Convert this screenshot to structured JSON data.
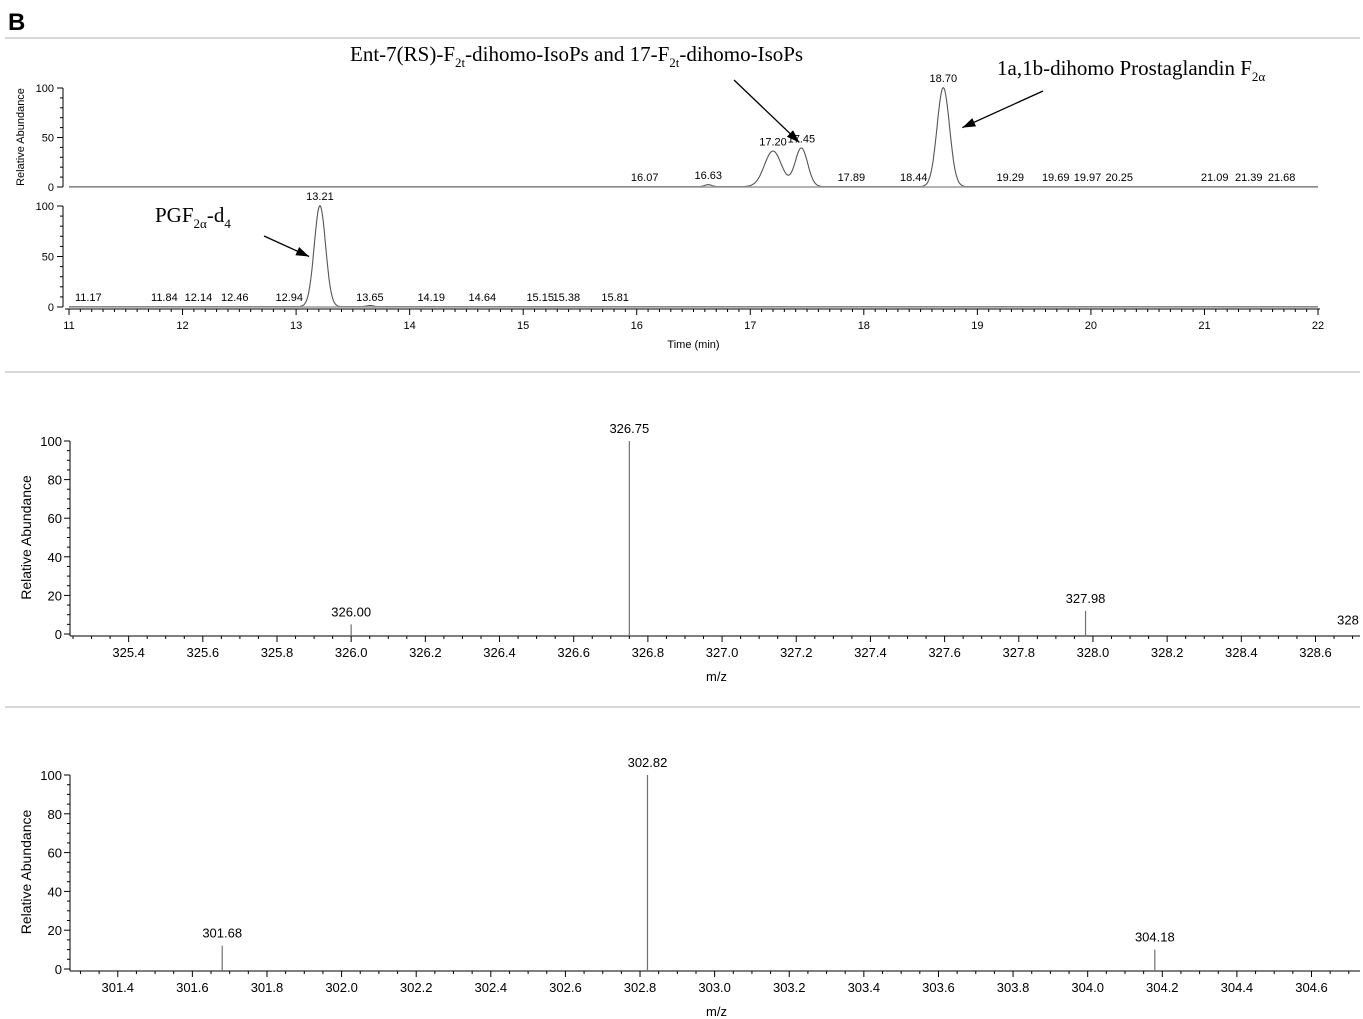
{
  "panel_letter": "B",
  "colors": {
    "axis": "#000000",
    "trace": "#555555",
    "separator": "#b0b0b0"
  },
  "chart_data": [
    {
      "id": "chromatogram",
      "type": "line",
      "xlabel": "Time (min)",
      "ylabel": "Relative Abundance",
      "xlim": [
        11,
        22
      ],
      "ylim": [
        0,
        100
      ],
      "xticks": [
        11,
        12,
        13,
        14,
        15,
        16,
        17,
        18,
        19,
        20,
        21,
        22
      ],
      "yticks": [
        0,
        50,
        100
      ],
      "series": [
        {
          "peaks": [
            {
              "rt": 16.63,
              "height": 2,
              "width": 0.03
            },
            {
              "rt": 17.2,
              "height": 36,
              "width": 0.075
            },
            {
              "rt": 17.45,
              "height": 39,
              "width": 0.055
            },
            {
              "rt": 18.7,
              "height": 100,
              "width": 0.055
            }
          ],
          "peak_labels": [
            {
              "text": "16.07",
              "x": 16.07,
              "y": 2
            },
            {
              "text": "16.63",
              "x": 16.63,
              "y": 4
            },
            {
              "text": "17.20",
              "x": 17.2,
              "y": 38
            },
            {
              "text": "17.45",
              "x": 17.45,
              "y": 41
            },
            {
              "text": "17.89",
              "x": 17.89,
              "y": 2
            },
            {
              "text": "18.44",
              "x": 18.44,
              "y": 2
            },
            {
              "text": "18.70",
              "x": 18.7,
              "y": 102
            },
            {
              "text": "19.29",
              "x": 19.29,
              "y": 2
            },
            {
              "text": "19.69",
              "x": 19.69,
              "y": 2
            },
            {
              "text": "19.97",
              "x": 19.97,
              "y": 2
            },
            {
              "text": "20.25",
              "x": 20.25,
              "y": 2
            },
            {
              "text": "21.09",
              "x": 21.09,
              "y": 2
            },
            {
              "text": "21.39",
              "x": 21.39,
              "y": 2
            },
            {
              "text": "21.68",
              "x": 21.68,
              "y": 2
            }
          ]
        },
        {
          "peaks": [
            {
              "rt": 13.21,
              "height": 100,
              "width": 0.05
            },
            {
              "rt": 13.65,
              "height": 1,
              "width": 0.03
            }
          ],
          "peak_labels": [
            {
              "text": "11.17",
              "x": 11.17,
              "y": 2
            },
            {
              "text": "11.84",
              "x": 11.84,
              "y": 2
            },
            {
              "text": "12.14",
              "x": 12.14,
              "y": 2
            },
            {
              "text": "12.46",
              "x": 12.46,
              "y": 2
            },
            {
              "text": "12.94",
              "x": 12.94,
              "y": 2
            },
            {
              "text": "13.21",
              "x": 13.21,
              "y": 102
            },
            {
              "text": "13.65",
              "x": 13.65,
              "y": 2
            },
            {
              "text": "14.19",
              "x": 14.19,
              "y": 2
            },
            {
              "text": "14.64",
              "x": 14.64,
              "y": 2
            },
            {
              "text": "15.15",
              "x": 15.15,
              "y": 2
            },
            {
              "text": "15.38",
              "x": 15.38,
              "y": 2
            },
            {
              "text": "15.81",
              "x": 15.81,
              "y": 2
            }
          ]
        }
      ],
      "annotations": [
        {
          "text_parts": [
            [
              "Ent-7(RS)-F",
              ""
            ],
            [
              "2t",
              "sub"
            ],
            [
              "-dihomo-IsoPs and 17-F",
              ""
            ],
            [
              "2t",
              "sub"
            ],
            [
              "-dihomo-IsoPs",
              ""
            ]
          ],
          "points_to": [
            17.45,
            45
          ],
          "trace": 0
        },
        {
          "text_parts": [
            [
              "1a,1b-dihomo Prostaglandin F",
              ""
            ],
            [
              "2α",
              "sub"
            ]
          ],
          "points_to": [
            18.85,
            60
          ],
          "trace": 0
        },
        {
          "text_parts": [
            [
              "PGF",
              ""
            ],
            [
              "2α",
              "sub"
            ],
            [
              "-d",
              ""
            ],
            [
              "4",
              "sub"
            ]
          ],
          "points_to": [
            13.15,
            50
          ],
          "trace": 1
        }
      ]
    },
    {
      "id": "spectrum1",
      "type": "bar",
      "xlabel": "m/z",
      "ylabel": "Relative Abundance",
      "xlim": [
        325.25,
        328.72
      ],
      "ylim": [
        0,
        100
      ],
      "xticks": [
        325.4,
        325.6,
        325.8,
        326.0,
        326.2,
        326.4,
        326.6,
        326.8,
        327.0,
        327.2,
        327.4,
        327.6,
        327.8,
        328.0,
        328.2,
        328.4,
        328.6
      ],
      "xtick_labels": [
        "325.4",
        "325.6",
        "325.8",
        "326.0",
        "326.2",
        "326.4",
        "326.6",
        "326.8",
        "327.0",
        "327.2",
        "327.4",
        "327.6",
        "327.8",
        "328.0",
        "328.2",
        "328.4",
        "328.6"
      ],
      "yticks": [
        0,
        20,
        40,
        60,
        80,
        100
      ],
      "peaks": [
        {
          "mz": 326.0,
          "abundance": 5,
          "label": "326.00"
        },
        {
          "mz": 326.75,
          "abundance": 100,
          "label": "326.75"
        },
        {
          "mz": 327.98,
          "abundance": 12,
          "label": "327.98"
        }
      ],
      "edge_label": "328"
    },
    {
      "id": "spectrum2",
      "type": "bar",
      "xlabel": "m/z",
      "ylabel": "Relative Abundance",
      "xlim": [
        301.28,
        304.73
      ],
      "ylim": [
        0,
        100
      ],
      "xticks": [
        301.4,
        301.6,
        301.8,
        302.0,
        302.2,
        302.4,
        302.6,
        302.8,
        303.0,
        303.2,
        303.4,
        303.6,
        303.8,
        304.0,
        304.2,
        304.4,
        304.6
      ],
      "xtick_labels": [
        "301.4",
        "301.6",
        "301.8",
        "302.0",
        "302.2",
        "302.4",
        "302.6",
        "302.8",
        "303.0",
        "303.2",
        "303.4",
        "303.6",
        "303.8",
        "304.0",
        "304.2",
        "304.4",
        "304.6"
      ],
      "yticks": [
        0,
        20,
        40,
        60,
        80,
        100
      ],
      "peaks": [
        {
          "mz": 301.68,
          "abundance": 12,
          "label": "301.68"
        },
        {
          "mz": 302.82,
          "abundance": 100,
          "label": "302.82"
        },
        {
          "mz": 304.18,
          "abundance": 10,
          "label": "304.18"
        }
      ]
    }
  ]
}
